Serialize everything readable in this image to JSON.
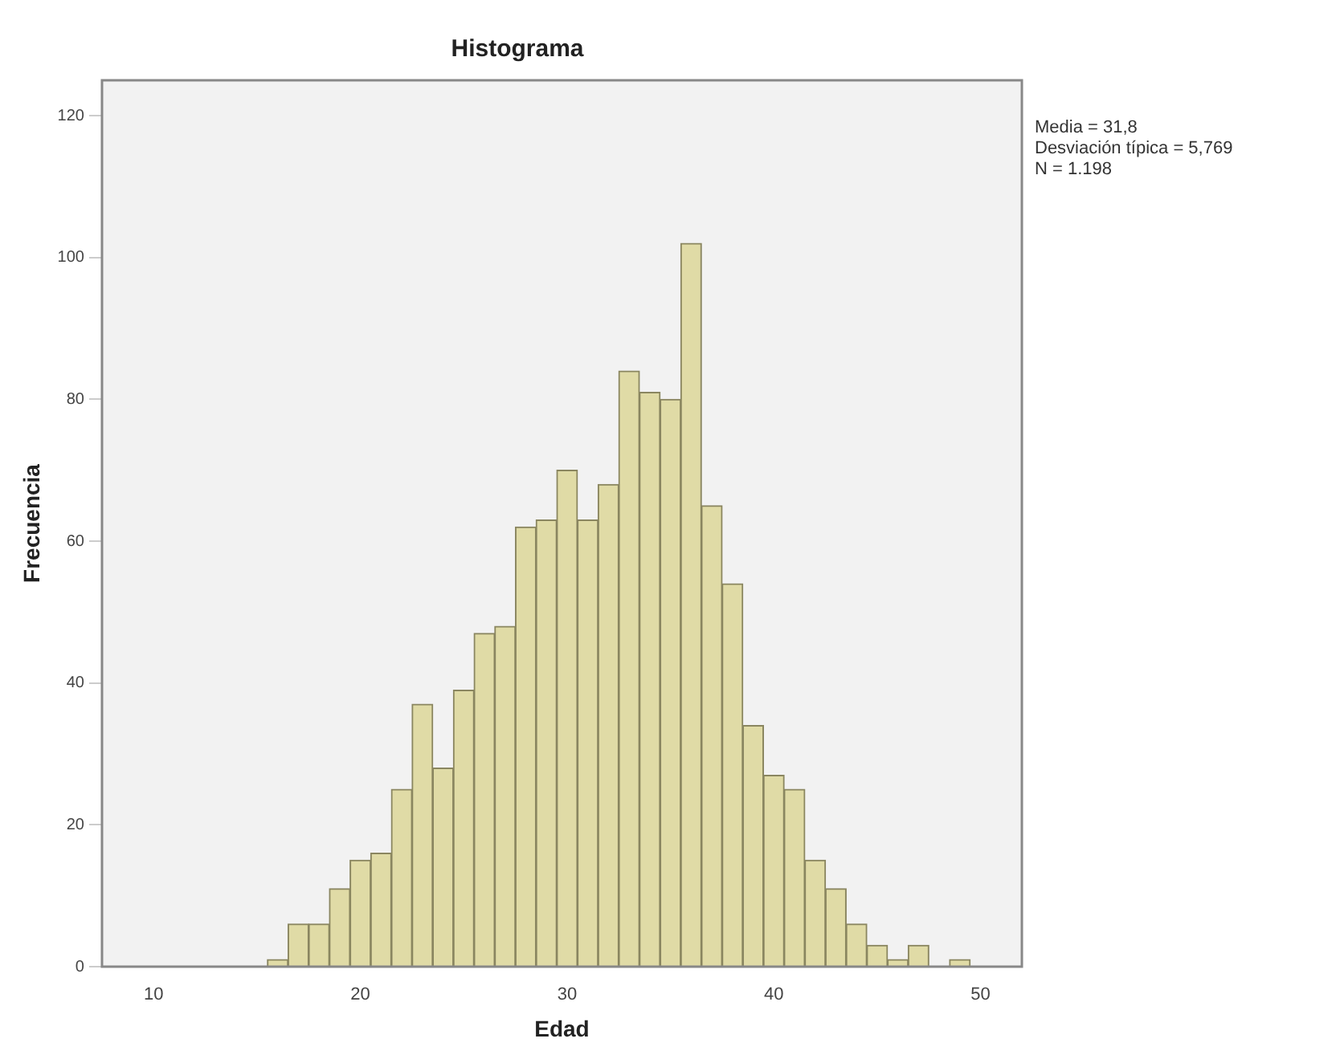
{
  "chart_data": {
    "type": "histogram",
    "title": "Histograma",
    "xlabel": "Edad",
    "ylabel": "Frecuencia",
    "bins": [
      15.5,
      16.5,
      17.5,
      18.5,
      19.5,
      20.5,
      21.5,
      22.5,
      23.5,
      24.5,
      25.5,
      26.5,
      27.5,
      28.5,
      29.5,
      30.5,
      31.5,
      32.5,
      33.5,
      34.5,
      35.5,
      36.5,
      37.5,
      38.5,
      39.5,
      40.5,
      41.5,
      42.5,
      43.5,
      44.5,
      45.5,
      46.5,
      47.5,
      48.5,
      49.5
    ],
    "values": [
      1,
      6,
      6,
      11,
      15,
      16,
      25,
      37,
      28,
      39,
      47,
      48,
      62,
      63,
      70,
      63,
      68,
      84,
      81,
      80,
      102,
      65,
      54,
      34,
      27,
      25,
      15,
      11,
      6,
      3,
      1,
      3,
      0,
      1
    ],
    "color": "#e0dba6",
    "xlim": [
      7.5,
      52
    ],
    "xticks": [
      10,
      20,
      30,
      40,
      50
    ],
    "ylim": [
      0,
      125
    ],
    "yticks": [
      0,
      20,
      40,
      60,
      80,
      100,
      120
    ],
    "grid": false,
    "legend": false,
    "annotations": [
      "Media = 31,8",
      "Desviación típica = 5,769",
      "N = 1.198"
    ]
  }
}
